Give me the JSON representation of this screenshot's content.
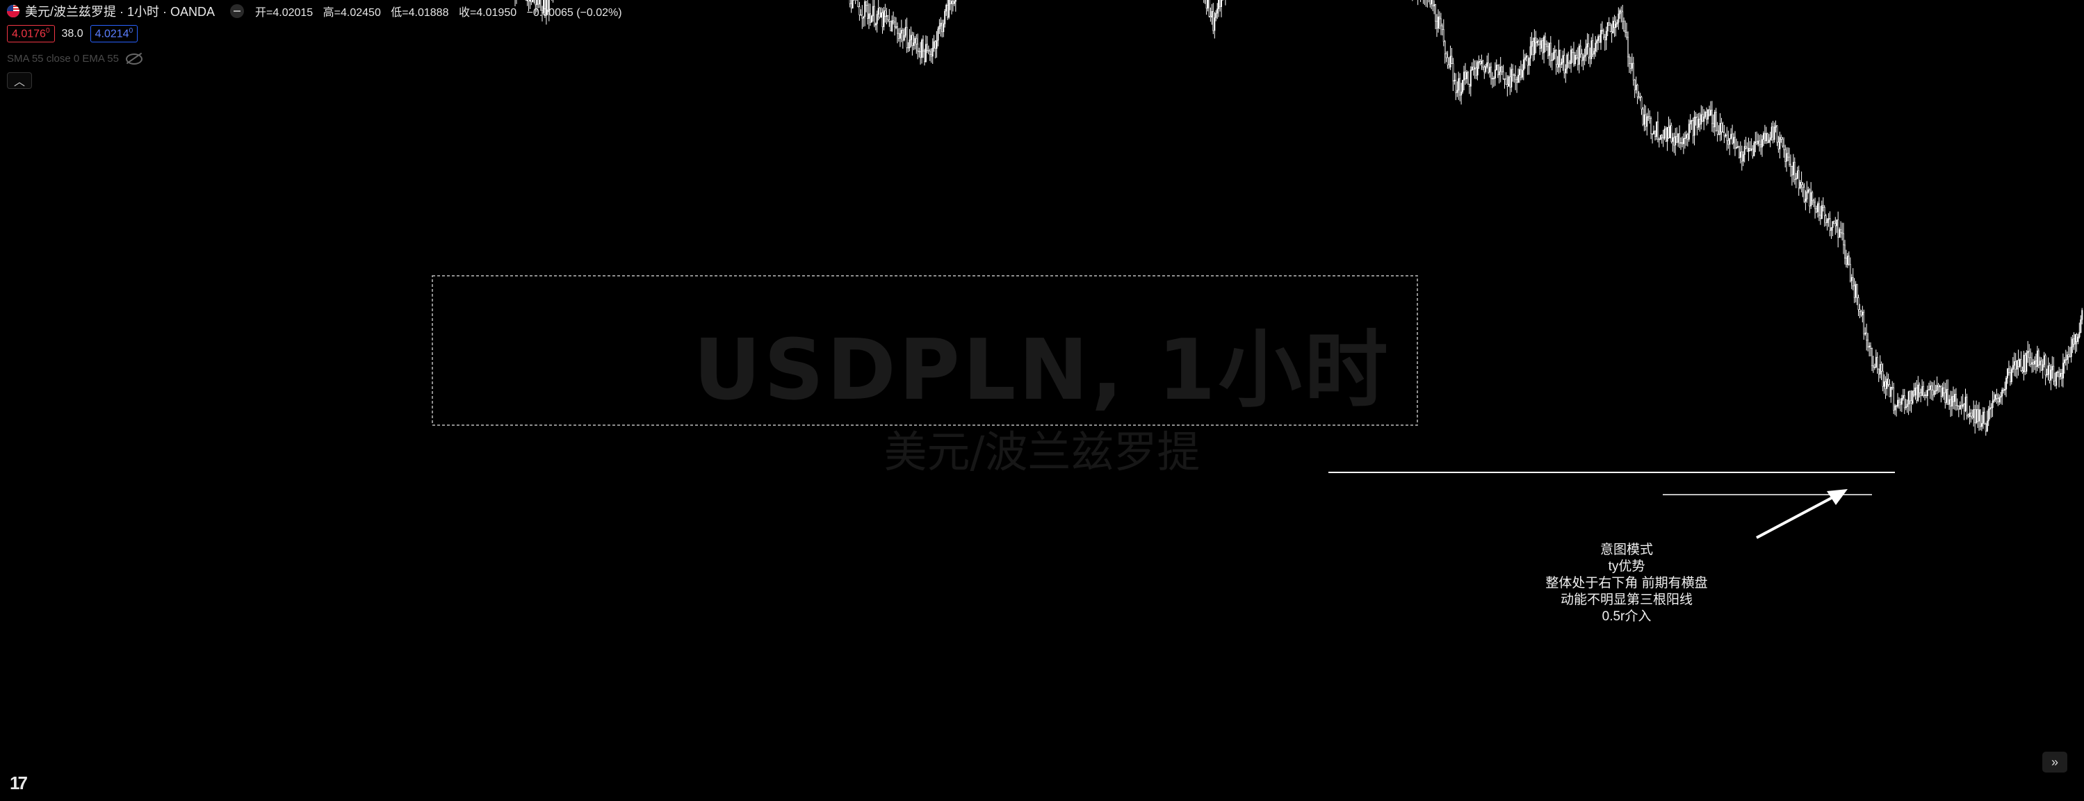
{
  "header": {
    "symbol_title": "美元/波兰兹罗提 · 1小时 · OANDA",
    "open_label": "开=4.02015",
    "high_label": "高=4.02450",
    "low_label": "低=4.01888",
    "close_label": "收=4.01950",
    "change_label": "−0.00065 (−0.02%)"
  },
  "quote": {
    "bid": "4.0176",
    "bid_sup": "0",
    "spread": "38.0",
    "ask": "4.0214",
    "ask_sup": "0"
  },
  "indicators": {
    "label": "SMA 55 close 0 EMA 55"
  },
  "watermark": {
    "symbol": "USDPLN, 1小时",
    "name": "美元/波兰兹罗提"
  },
  "annotation": {
    "lines": [
      "意图模式",
      "ty优势",
      "整体处于右下角 前期有横盘",
      "动能不明显第三根阳线",
      "0.5r介入"
    ]
  },
  "chart_data": {
    "type": "candlestick",
    "symbol": "USDPLN",
    "timeframe": "1小时",
    "broker": "OANDA",
    "background": "#000000",
    "candle_color": "#ffffff",
    "annotation_color": "#ffffff",
    "drawings": [
      "rectangle",
      "horizontal-line",
      "horizontal-line",
      "arrow"
    ],
    "close_path": [
      [
        0,
        4.1085
      ],
      [
        2,
        4.12
      ],
      [
        3.5,
        4.108
      ],
      [
        5,
        4.1005
      ],
      [
        7,
        4.088
      ],
      [
        9,
        4.082
      ],
      [
        11,
        4.087
      ],
      [
        12.5,
        4.097
      ],
      [
        14,
        4.1
      ],
      [
        15.5,
        4.098
      ],
      [
        17,
        4.072
      ],
      [
        18.5,
        4.079
      ],
      [
        20,
        4.06
      ],
      [
        21.5,
        4.048
      ],
      [
        23,
        4.05
      ],
      [
        25,
        4.054
      ],
      [
        27,
        4.058
      ],
      [
        28.5,
        4.052
      ],
      [
        30,
        4.056
      ],
      [
        31.5,
        4.048
      ],
      [
        33.5,
        4.046
      ],
      [
        35.5,
        4.057
      ],
      [
        37,
        4.056
      ],
      [
        38.5,
        4.049
      ],
      [
        41,
        4.05
      ],
      [
        42.5,
        4.059
      ],
      [
        44,
        4.061
      ],
      [
        46,
        4.056
      ],
      [
        48,
        4.061
      ],
      [
        49.5,
        4.057
      ],
      [
        51,
        4.051
      ],
      [
        52.5,
        4.046
      ],
      [
        54.5,
        4.044
      ],
      [
        57,
        4.04
      ],
      [
        58.5,
        4.047
      ],
      [
        60,
        4.057
      ],
      [
        62,
        4.062
      ],
      [
        63.5,
        4.054
      ],
      [
        65,
        4.061
      ],
      [
        66.5,
        4.062
      ],
      [
        68,
        4.055
      ],
      [
        70,
        4.057
      ],
      [
        71.5,
        4.06
      ],
      [
        73,
        4.054
      ],
      [
        74.5,
        4.044
      ],
      [
        76,
        4.053
      ],
      [
        78,
        4.057
      ],
      [
        80,
        4.056
      ],
      [
        82,
        4.05
      ],
      [
        84,
        4.053
      ],
      [
        86,
        4.05
      ],
      [
        88,
        4.046
      ],
      [
        89.5,
        4.036
      ],
      [
        91,
        4.039
      ],
      [
        93,
        4.037
      ],
      [
        94.5,
        4.042
      ],
      [
        96,
        4.039
      ],
      [
        98,
        4.041
      ],
      [
        99.5,
        4.045
      ],
      [
        101,
        4.032
      ],
      [
        103,
        4.03
      ],
      [
        105,
        4.033
      ],
      [
        107,
        4.028
      ],
      [
        109,
        4.031
      ],
      [
        111,
        4.023
      ],
      [
        113,
        4.019
      ],
      [
        115,
        4.004
      ],
      [
        116.5,
        3.998
      ],
      [
        118,
        4.0
      ],
      [
        120,
        3.999
      ],
      [
        122,
        3.996
      ],
      [
        123.5,
        4.002
      ],
      [
        125,
        4.004
      ],
      [
        126.5,
        4.001
      ],
      [
        128,
        4.009
      ]
    ]
  }
}
